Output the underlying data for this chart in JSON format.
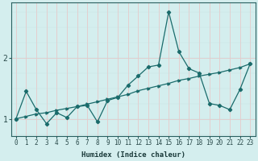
{
  "xlabel": "Humidex (Indice chaleur)",
  "bg_color": "#d4eeee",
  "line_color": "#1a6b6b",
  "vgrid_color": "#e8c8c8",
  "hgrid_color": "#c8e0e0",
  "xlim": [
    -0.5,
    23.5
  ],
  "ylim": [
    0.72,
    2.9
  ],
  "yticks": [
    1,
    2
  ],
  "xticks": [
    0,
    1,
    2,
    3,
    4,
    5,
    6,
    7,
    8,
    9,
    10,
    11,
    12,
    13,
    14,
    15,
    16,
    17,
    18,
    19,
    20,
    21,
    22,
    23
  ],
  "line1_x": [
    0,
    1,
    2,
    3,
    4,
    5,
    6,
    7,
    8,
    9,
    10,
    11,
    12,
    13,
    14,
    15,
    16,
    17,
    18,
    19,
    20,
    21,
    22,
    23
  ],
  "line1_y": [
    1.0,
    1.45,
    1.15,
    0.92,
    1.1,
    1.02,
    1.2,
    1.22,
    0.95,
    1.3,
    1.35,
    1.55,
    1.7,
    1.85,
    1.88,
    2.75,
    2.1,
    1.82,
    1.75,
    1.25,
    1.22,
    1.15,
    1.48,
    1.9
  ],
  "line2_x": [
    0,
    1,
    2,
    3,
    4,
    5,
    6,
    7,
    8,
    9,
    10,
    11,
    12,
    13,
    14,
    15,
    16,
    17,
    18,
    19,
    20,
    21,
    22,
    23
  ],
  "line2_y": [
    1.0,
    1.04,
    1.08,
    1.1,
    1.14,
    1.17,
    1.2,
    1.24,
    1.28,
    1.32,
    1.36,
    1.4,
    1.46,
    1.5,
    1.54,
    1.58,
    1.63,
    1.66,
    1.7,
    1.73,
    1.76,
    1.8,
    1.84,
    1.9
  ],
  "xlabel_fontsize": 6.5,
  "tick_fontsize": 5.5,
  "ytick_fontsize": 7
}
